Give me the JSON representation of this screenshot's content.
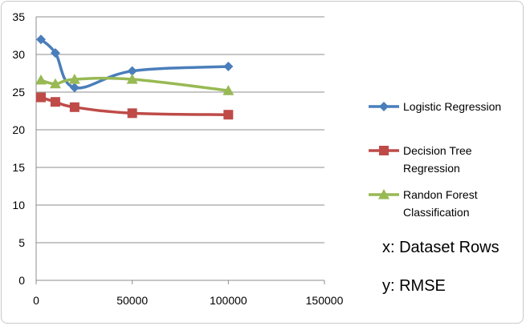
{
  "chart_data": {
    "type": "line",
    "x_ticks": [
      "0",
      "50000",
      "100000",
      "150000"
    ],
    "y_ticks": [
      "0",
      "5",
      "10",
      "15",
      "20",
      "25",
      "30",
      "35"
    ],
    "xlim": [
      0,
      150000
    ],
    "ylim": [
      0,
      35
    ],
    "grid": "horizontal",
    "legend_position": "right",
    "series": [
      {
        "name": "Logistic Regression",
        "legend_lines": [
          "Logistic Regression"
        ],
        "color": "#4a7ebb",
        "marker": "diamond",
        "x": [
          2500,
          10000,
          20000,
          50000,
          100000
        ],
        "y": [
          32.0,
          30.2,
          25.6,
          27.8,
          28.4
        ]
      },
      {
        "name": "Decision Tree Regression",
        "legend_lines": [
          "Decision Tree",
          "Regression"
        ],
        "color": "#be4b48",
        "marker": "square",
        "x": [
          2500,
          10000,
          20000,
          50000,
          100000
        ],
        "y": [
          24.3,
          23.7,
          23.0,
          22.2,
          22.0
        ]
      },
      {
        "name": "Randon Forest Classification",
        "legend_lines": [
          "Randon Forest",
          "Classification"
        ],
        "color": "#98b954",
        "marker": "triangle",
        "x": [
          2500,
          10000,
          20000,
          50000,
          100000
        ],
        "y": [
          26.6,
          26.1,
          26.7,
          26.7,
          25.2
        ]
      }
    ]
  },
  "notes": {
    "x_note": "x: Dataset Rows",
    "y_note": "y: RMSE"
  }
}
